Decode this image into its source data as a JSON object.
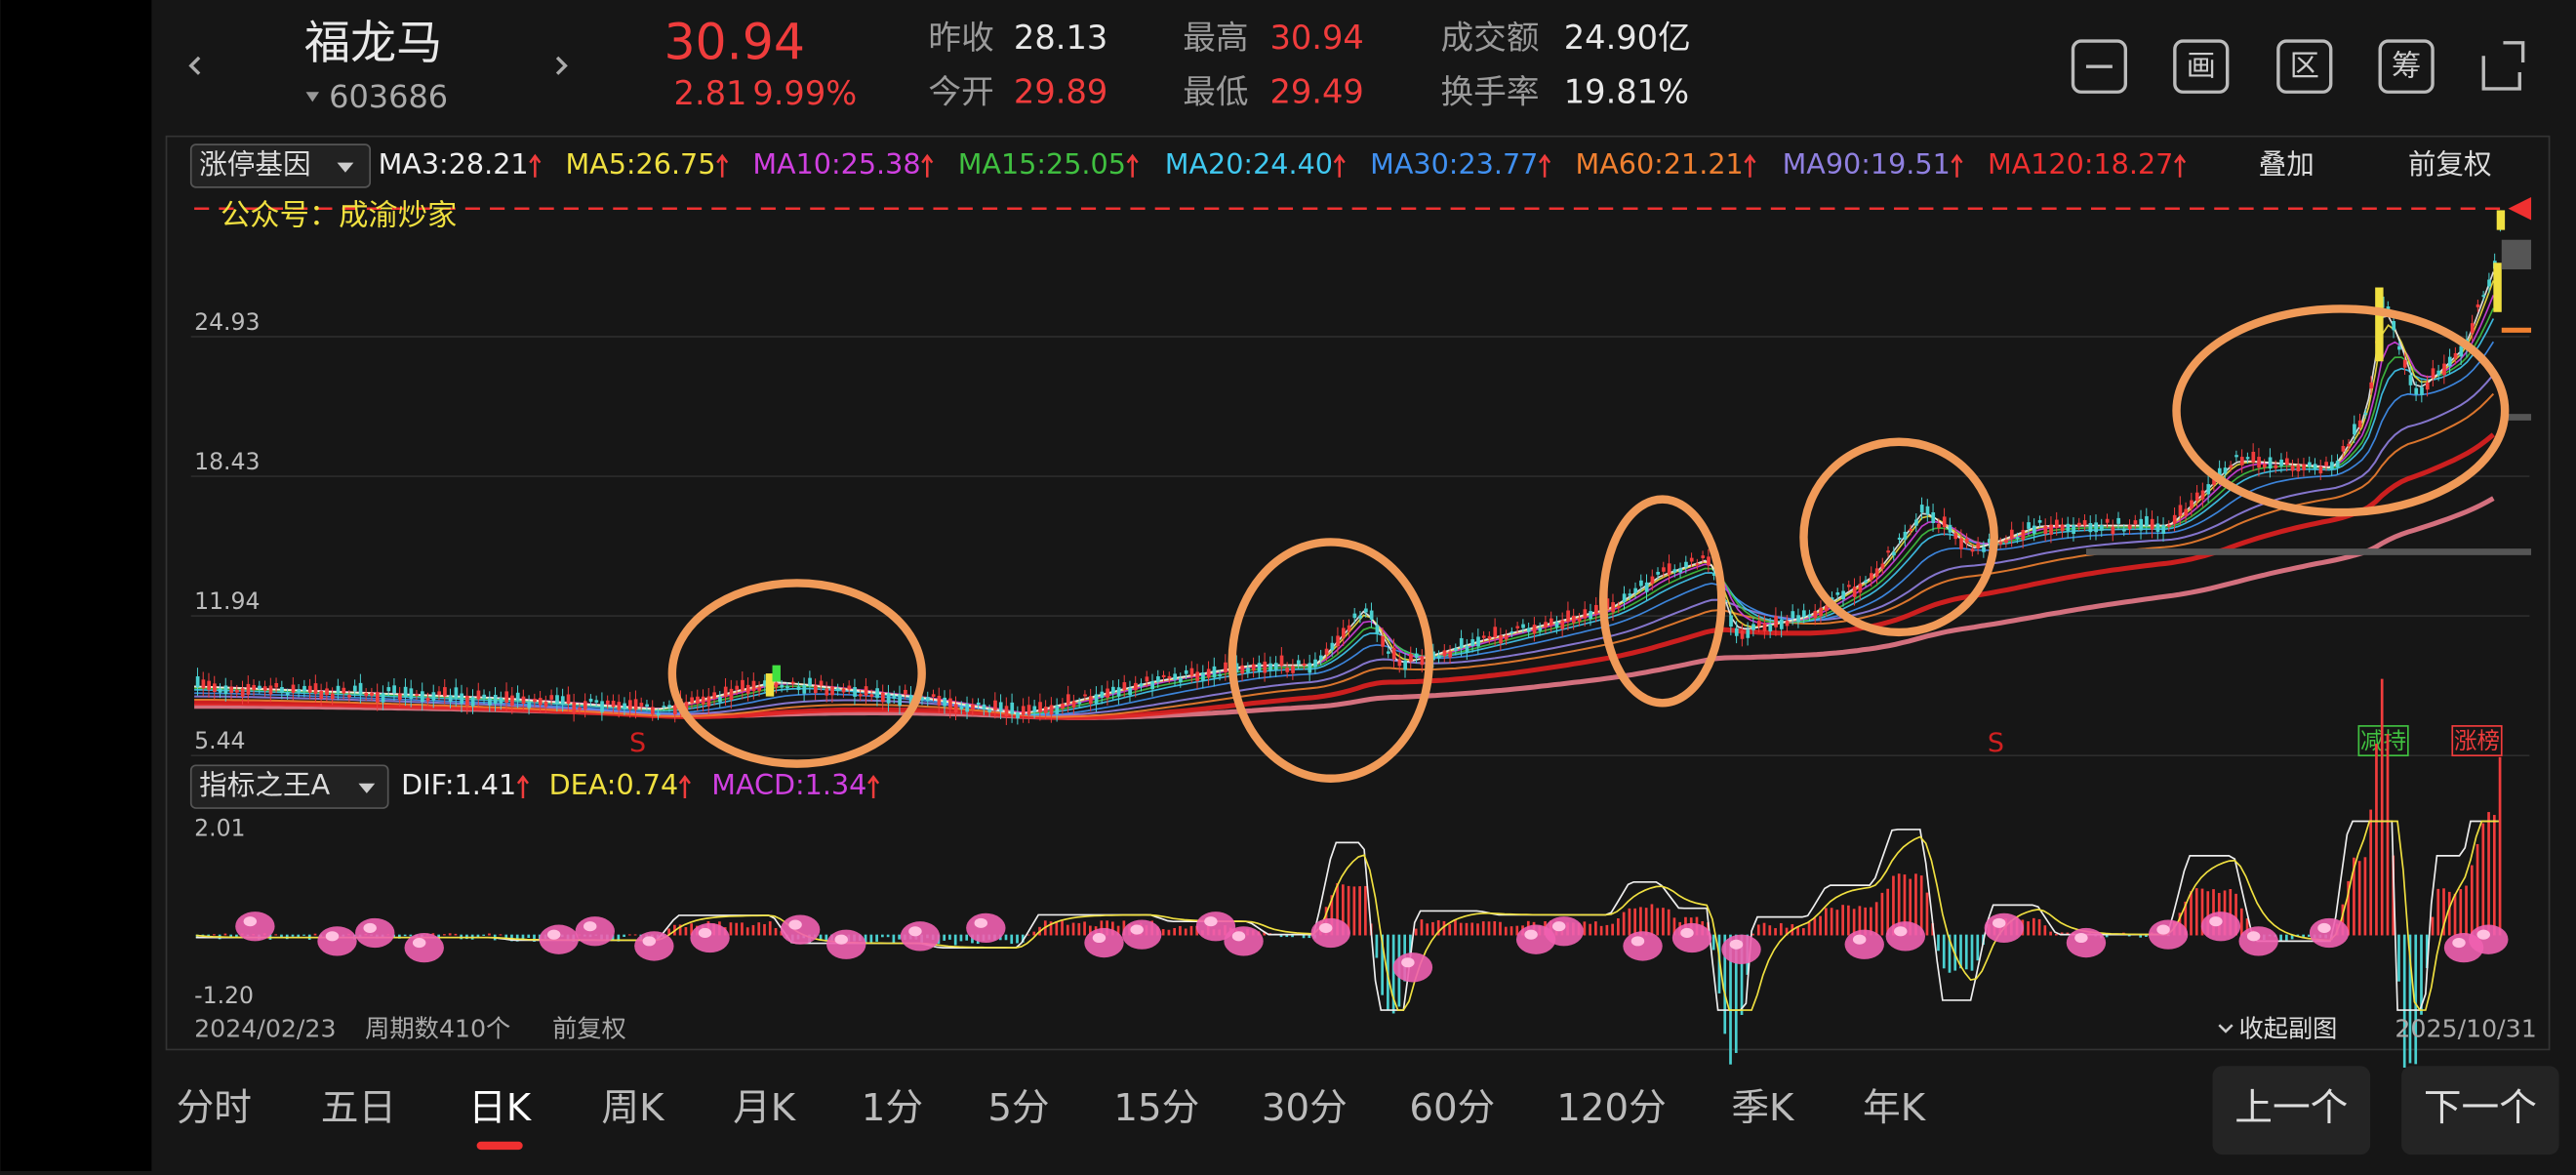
{
  "header": {
    "name": "福龙马",
    "code": "603686",
    "price": "30.94",
    "change": "2.81",
    "change_pct": "9.99%",
    "stats": [
      {
        "label": "昨收",
        "value": "28.13"
      },
      {
        "label": "今开",
        "value": "29.89"
      },
      {
        "label": "最高",
        "value": "30.94"
      },
      {
        "label": "最低",
        "value": "29.49"
      },
      {
        "label": "成交额",
        "value": "24.90亿"
      },
      {
        "label": "换手率",
        "value": "19.81%"
      }
    ],
    "icons": [
      "画",
      "区",
      "筹"
    ]
  },
  "main_panel": {
    "indicator": "涨停基因",
    "ma": [
      "MA3:28.21",
      "MA5:26.75",
      "MA10:25.38",
      "MA15:25.05",
      "MA20:24.40",
      "MA30:23.77",
      "MA60:21.21",
      "MA90:19.51",
      "MA120:18.27"
    ],
    "overlay": "叠加",
    "adjust": "前复权",
    "watermark": "公众号：成渝炒家",
    "y_labels": [
      "24.93",
      "18.43",
      "11.94",
      "5.44"
    ],
    "signals": [
      "S",
      "S"
    ],
    "tags": [
      "减持",
      "涨榜"
    ]
  },
  "sub_panel": {
    "indicator": "指标之王A",
    "items": [
      "DIF:1.41",
      "DEA:0.74",
      "MACD:1.34"
    ],
    "y_labels": [
      "2.01",
      "-1.20"
    ]
  },
  "footer": {
    "start_date": "2024/02/23",
    "periods": "周期数410个",
    "adjust": "前复权",
    "collapse": "收起副图",
    "end_date": "2025/10/31"
  },
  "tabs": [
    "分时",
    "五日",
    "日K",
    "周K",
    "月K",
    "1分",
    "5分",
    "15分",
    "30分",
    "60分",
    "120分",
    "季K",
    "年K"
  ],
  "buttons": [
    "上一个",
    "下一个"
  ]
}
